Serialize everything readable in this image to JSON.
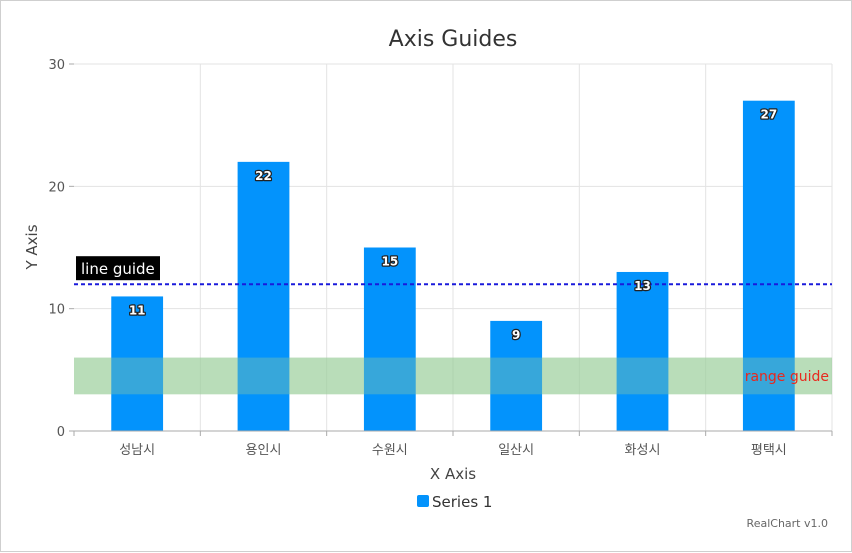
{
  "chart_data": {
    "type": "bar",
    "title": "Axis Guides",
    "xlabel": "X Axis",
    "ylabel": "Y Axis",
    "categories": [
      "성남시",
      "용인시",
      "수원시",
      "일산시",
      "화성시",
      "평택시"
    ],
    "series": [
      {
        "name": "Series 1",
        "values": [
          11,
          22,
          15,
          9,
          13,
          27
        ],
        "color": "#0393fc"
      }
    ],
    "ylim": [
      0,
      30
    ],
    "yticks": [
      0,
      10,
      20,
      30
    ],
    "grid": true,
    "legend_position": "bottom",
    "guides": {
      "line": {
        "value": 12,
        "label": "line guide",
        "color": "#1a1adb"
      },
      "range": {
        "from": 3,
        "to": 6,
        "label": "range guide",
        "color": "#9ccf9c",
        "label_color": "#e8281e"
      }
    },
    "credits": "RealChart v1.0"
  }
}
